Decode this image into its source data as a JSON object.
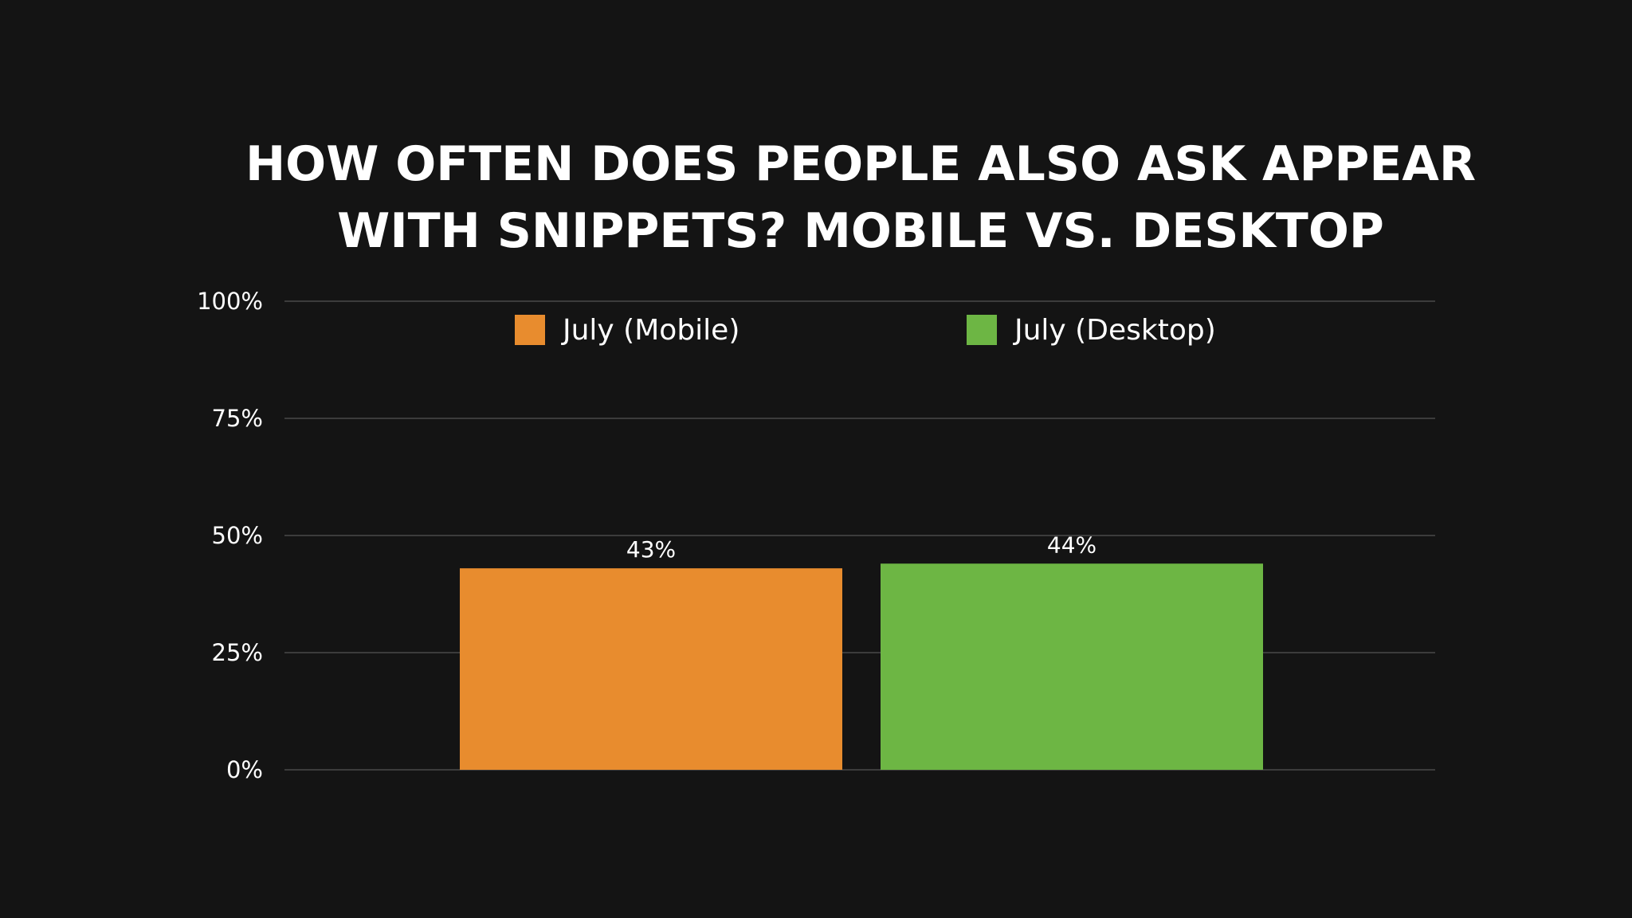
{
  "chart_data": {
    "type": "bar",
    "title": [
      "HOW OFTEN DOES PEOPLE ALSO ASK APPEAR",
      "WITH SNIPPETS? MOBILE VS. DESKTOP"
    ],
    "categories": [
      "July (Mobile)",
      "July (Desktop)"
    ],
    "values": [
      43,
      44
    ],
    "value_labels": [
      "43%",
      "44%"
    ],
    "colors": [
      "#e88c2e",
      "#6db644"
    ],
    "ylim": [
      0,
      100
    ],
    "yticks": [
      0,
      25,
      50,
      75,
      100
    ],
    "ytick_labels": [
      "0%",
      "25%",
      "50%",
      "75%",
      "100%"
    ],
    "grid": true,
    "legend": {
      "position": "top",
      "entries": [
        "July (Mobile)",
        "July (Desktop)"
      ]
    },
    "xlabel": "",
    "ylabel": ""
  },
  "style": {
    "background": "#141414",
    "grid_color": "#4a4a4a",
    "text_color": "#ffffff"
  }
}
